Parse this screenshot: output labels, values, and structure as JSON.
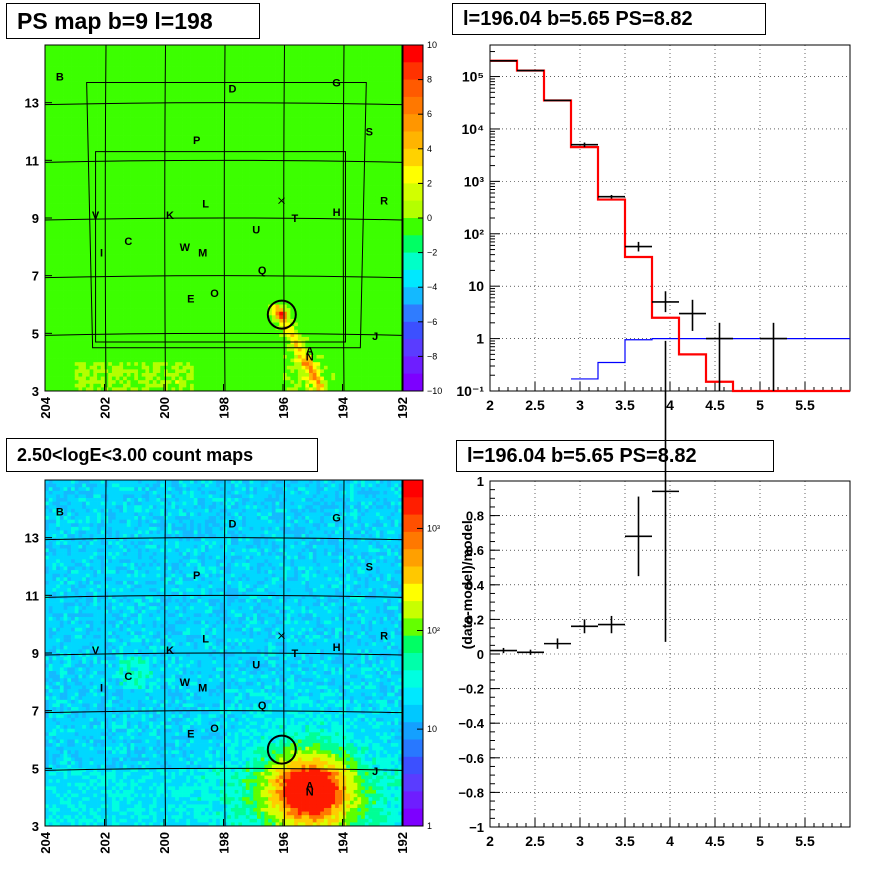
{
  "titles": {
    "map_top": "PS map b=9 l=198",
    "spectrum": "l=196.04 b=5.65 PS=8.82",
    "map_bottom": "2.50<logE<3.00 count maps",
    "ratio": "l=196.04 b=5.65 PS=8.82"
  },
  "colors": {
    "data": "#000000",
    "model_total": "#ff0000",
    "model_ps": "#0000ff"
  },
  "chart_data": [
    {
      "type": "heatmap",
      "name": "ps-map",
      "title": "PS map b=9 l=198",
      "x_axis": {
        "reversed": true,
        "range": [
          204,
          192
        ],
        "ticks": [
          "204",
          "202",
          "200",
          "198",
          "196",
          "194",
          "192"
        ]
      },
      "y_axis": {
        "range": [
          3,
          15
        ],
        "ticks": [
          "3",
          "5",
          "7",
          "9",
          "11",
          "13"
        ]
      },
      "colorbar": {
        "range": [
          -10,
          10
        ],
        "ticks": [
          "10",
          "8",
          "6",
          "4",
          "2",
          "0",
          "−2",
          "−4",
          "−6",
          "−8",
          "−10"
        ]
      },
      "hotspot": {
        "l": 196.04,
        "b": 5.65
      },
      "sources": [
        {
          "label": "B",
          "l": 203.5,
          "b": 13.9
        },
        {
          "label": "D",
          "l": 197.7,
          "b": 13.5
        },
        {
          "label": "G",
          "l": 194.2,
          "b": 13.7
        },
        {
          "label": "S",
          "l": 193.1,
          "b": 12.0
        },
        {
          "label": "P",
          "l": 198.9,
          "b": 11.7
        },
        {
          "label": "L",
          "l": 198.6,
          "b": 9.5
        },
        {
          "label": "K",
          "l": 199.8,
          "b": 9.1
        },
        {
          "label": "V",
          "l": 202.3,
          "b": 9.1
        },
        {
          "label": "T",
          "l": 195.6,
          "b": 9.0
        },
        {
          "label": "H",
          "l": 194.2,
          "b": 9.2
        },
        {
          "label": "R",
          "l": 192.6,
          "b": 9.6
        },
        {
          "label": "U",
          "l": 196.9,
          "b": 8.6
        },
        {
          "label": "C",
          "l": 201.2,
          "b": 8.2
        },
        {
          "label": "W",
          "l": 199.3,
          "b": 8.0
        },
        {
          "label": "M",
          "l": 198.7,
          "b": 7.8
        },
        {
          "label": "I",
          "l": 202.1,
          "b": 7.8
        },
        {
          "label": "Q",
          "l": 196.7,
          "b": 7.2
        },
        {
          "label": "O",
          "l": 198.3,
          "b": 6.4
        },
        {
          "label": "E",
          "l": 199.1,
          "b": 6.2
        },
        {
          "label": "A",
          "l": 195.1,
          "b": 4.4
        },
        {
          "label": "N",
          "l": 195.1,
          "b": 4.2
        },
        {
          "label": "J",
          "l": 192.9,
          "b": 4.9
        }
      ]
    },
    {
      "type": "line",
      "name": "spectrum",
      "title": "l=196.04 b=5.65 PS=8.82",
      "x_axis": {
        "range": [
          2,
          6
        ],
        "ticks": [
          "2",
          "2.5",
          "3",
          "3.5",
          "4",
          "4.5",
          "5",
          "5.5"
        ]
      },
      "y_axis": {
        "scale": "log",
        "range": [
          0.1,
          400000
        ],
        "ticks": [
          "10⁵",
          "10⁴",
          "10³",
          "10²",
          "10",
          "1",
          "10⁻¹"
        ]
      },
      "grid": true,
      "data_points": [
        {
          "x": 2.15,
          "xerr": 0.15,
          "y": 200000
        },
        {
          "x": 2.45,
          "xerr": 0.15,
          "y": 130000
        },
        {
          "x": 2.75,
          "xerr": 0.15,
          "y": 35000
        },
        {
          "x": 3.05,
          "xerr": 0.15,
          "y": 5000,
          "yerr": [
            4500,
            5500
          ]
        },
        {
          "x": 3.35,
          "xerr": 0.15,
          "y": 510,
          "yerr": [
            470,
            550
          ]
        },
        {
          "x": 3.65,
          "xerr": 0.15,
          "y": 57,
          "yerr": [
            46,
            70
          ]
        },
        {
          "x": 3.95,
          "xerr": 0.15,
          "y": 5.0,
          "yerr": [
            3.2,
            8.0
          ]
        },
        {
          "x": 4.25,
          "xerr": 0.15,
          "y": 3.0,
          "yerr": [
            1.4,
            5.5
          ]
        },
        {
          "x": 4.55,
          "xerr": 0.15,
          "y": 1.0,
          "yerr": [
            0.1,
            2.0
          ]
        },
        {
          "x": 5.15,
          "xerr": 0.15,
          "y": 1.0,
          "yerr": [
            0.1,
            2.0
          ]
        }
      ],
      "model_total_steps": {
        "edges": [
          2.0,
          2.3,
          2.6,
          2.9,
          3.2,
          3.5,
          3.8,
          4.1,
          4.4,
          4.7,
          5.0,
          6.0
        ],
        "values": [
          200000,
          130000,
          35000,
          4500,
          450,
          36,
          2.5,
          0.5,
          0.15,
          0.1,
          0.1
        ]
      },
      "model_ps_steps": {
        "edges": [
          2.9,
          3.2,
          3.5,
          3.8,
          6.0
        ],
        "values": [
          0.17,
          0.35,
          0.95,
          1.0
        ]
      }
    },
    {
      "type": "heatmap",
      "name": "count-map",
      "title": "2.50<logE<3.00 count maps",
      "x_axis": {
        "reversed": true,
        "range": [
          204,
          192
        ],
        "ticks": [
          "204",
          "202",
          "200",
          "198",
          "196",
          "194",
          "192"
        ]
      },
      "y_axis": {
        "range": [
          3,
          15
        ],
        "ticks": [
          "3",
          "5",
          "7",
          "9",
          "11",
          "13"
        ]
      },
      "colorbar": {
        "scale": "log",
        "range": [
          1,
          3000
        ],
        "ticks": [
          "10³",
          "10²",
          "10",
          "1"
        ]
      },
      "bright_spot": {
        "l": 195.1,
        "b": 4.2
      }
    },
    {
      "type": "scatter",
      "name": "ratio",
      "title": "l=196.04 b=5.65 PS=8.82",
      "ylabel": "(data-model)/model",
      "x_axis": {
        "range": [
          2,
          6
        ],
        "ticks": [
          "2",
          "2.5",
          "3",
          "3.5",
          "4",
          "4.5",
          "5",
          "5.5"
        ]
      },
      "y_axis": {
        "range": [
          -1,
          1
        ],
        "ticks": [
          "1",
          "0.8",
          "0.6",
          "0.4",
          "0.2",
          "0",
          "−0.2",
          "−0.4",
          "−0.6",
          "−0.8",
          "−1"
        ]
      },
      "grid": true,
      "data_points": [
        {
          "x": 2.15,
          "xerr": 0.15,
          "y": 0.02,
          "yerr": 0.015
        },
        {
          "x": 2.45,
          "xerr": 0.15,
          "y": 0.01,
          "yerr": 0.015
        },
        {
          "x": 2.75,
          "xerr": 0.15,
          "y": 0.06,
          "yerr": 0.03
        },
        {
          "x": 3.05,
          "xerr": 0.15,
          "y": 0.16,
          "yerr": 0.04
        },
        {
          "x": 3.35,
          "xerr": 0.15,
          "y": 0.17,
          "yerr": 0.05
        },
        {
          "x": 3.65,
          "xerr": 0.15,
          "y": 0.68,
          "yerr": 0.23
        },
        {
          "x": 3.95,
          "xerr": 0.15,
          "y": 0.94,
          "yerr": 0.87
        }
      ]
    }
  ]
}
